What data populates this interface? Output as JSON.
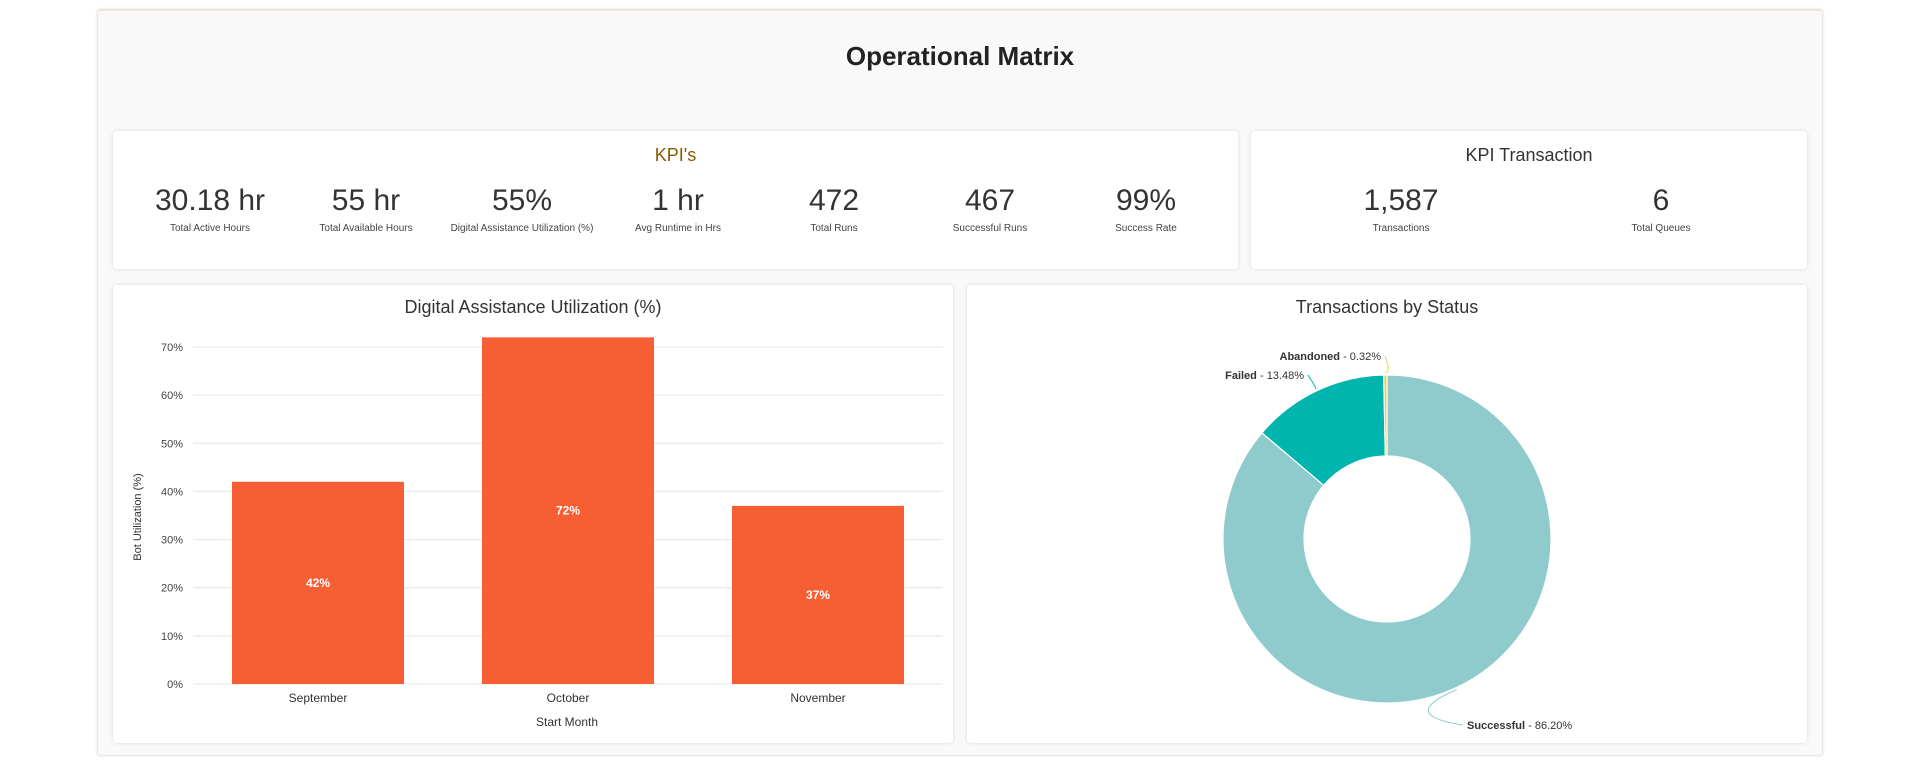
{
  "page": {
    "title": "Operational Matrix"
  },
  "kpis": {
    "title": "KPI's",
    "items": [
      {
        "value": "30.18 hr",
        "label": "Total Active Hours"
      },
      {
        "value": "55 hr",
        "label": "Total Available Hours"
      },
      {
        "value": "55%",
        "label": "Digital Assistance Utilization (%)"
      },
      {
        "value": "1 hr",
        "label": "Avg Runtime in Hrs"
      },
      {
        "value": "472",
        "label": "Total Runs"
      },
      {
        "value": "467",
        "label": "Successful Runs"
      },
      {
        "value": "99%",
        "label": "Success Rate"
      }
    ]
  },
  "kpi_transaction": {
    "title": "KPI Transaction",
    "items": [
      {
        "value": "1,587",
        "label": "Transactions"
      },
      {
        "value": "6",
        "label": "Total Queues"
      }
    ]
  },
  "colors": {
    "bar": "#f65f33",
    "successful": "#8fcacc",
    "failed": "#00b5ad",
    "abandoned": "#f7c948",
    "title_accent": "#8a5a00"
  },
  "chart_data": [
    {
      "type": "bar",
      "title": "Digital Assistance Utilization (%)",
      "categories": [
        "September",
        "October",
        "November"
      ],
      "values": [
        42,
        72,
        37
      ],
      "data_labels": [
        "42%",
        "72%",
        "37%"
      ],
      "xlabel": "Start Month",
      "ylabel": "Bot Utilization (%)",
      "ylim": [
        0,
        70
      ],
      "yticks": [
        0,
        10,
        20,
        30,
        40,
        50,
        60,
        70
      ],
      "ytick_labels": [
        "0%",
        "10%",
        "20%",
        "30%",
        "40%",
        "50%",
        "60%",
        "70%"
      ],
      "grid": true
    },
    {
      "type": "pie",
      "title": "Transactions by Status",
      "slices": [
        {
          "name": "Successful",
          "value": 86.2,
          "label": "86.20%"
        },
        {
          "name": "Failed",
          "value": 13.48,
          "label": "13.48%"
        },
        {
          "name": "Abandoned",
          "value": 0.32,
          "label": "0.32%"
        }
      ]
    }
  ]
}
